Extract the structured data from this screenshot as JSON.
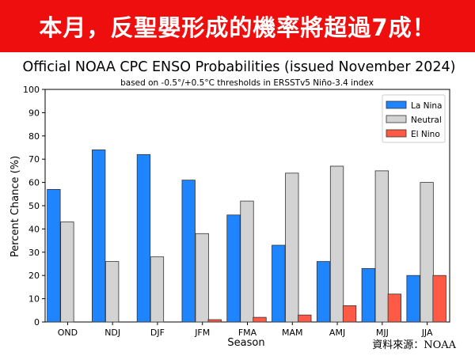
{
  "banner": {
    "headline": "本月，反聖嬰形成的機率將超過7成！"
  },
  "source_note": "資料來源：NOAA",
  "colors": {
    "banner_bg": "#ee0e0e",
    "la_nina": "#1f85ff",
    "neutral": "#d3d3d3",
    "el_nino": "#ff5a45"
  },
  "chart_data": {
    "type": "bar",
    "title": "Official NOAA CPC ENSO Probabilities (issued November 2024)",
    "subtitle": "based on -0.5°/+0.5°C thresholds in ERSSTv5 Niño-3.4 index",
    "xlabel": "Season",
    "ylabel": "Percent Chance (%)",
    "ylim": [
      0,
      100
    ],
    "yticks": [
      0,
      10,
      20,
      30,
      40,
      50,
      60,
      70,
      80,
      90,
      100
    ],
    "categories": [
      "OND",
      "NDJ",
      "DJF",
      "JFM",
      "FMA",
      "MAM",
      "AMJ",
      "MJJ",
      "JJA"
    ],
    "legend_position": "top-right",
    "grid": false,
    "series": [
      {
        "name": "La Nina",
        "color": "#1f85ff",
        "values": [
          57,
          74,
          72,
          61,
          46,
          33,
          26,
          23,
          20
        ]
      },
      {
        "name": "Neutral",
        "color": "#d3d3d3",
        "values": [
          43,
          26,
          28,
          38,
          52,
          64,
          67,
          65,
          60
        ]
      },
      {
        "name": "El Nino",
        "color": "#ff5a45",
        "values": [
          0,
          0,
          0,
          1,
          2,
          3,
          7,
          12,
          20
        ]
      }
    ]
  }
}
